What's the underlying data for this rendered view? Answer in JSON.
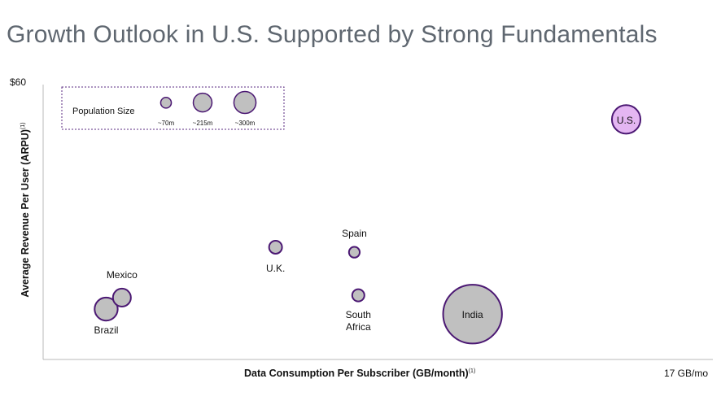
{
  "page": {
    "title": "Growth Outlook in U.S. Supported by Strong Fundamentals"
  },
  "colors": {
    "bubble_fill": "#c0c0c0",
    "bubble_stroke": "#4b1873",
    "us_fill": "#e4b6f2",
    "legend_border": "#5a2a80",
    "axis": "#b8b8b8",
    "title": "#5f6770"
  },
  "chart_data": {
    "type": "scatter",
    "title": "Growth Outlook in U.S. Supported by Strong Fundamentals",
    "xlabel": "Data Consumption Per Subscriber (GB/month)",
    "xlabel_footnote": "(1)",
    "ylabel": "Average Revenue Per User (ARPU)",
    "ylabel_footnote": "(1)",
    "x_max_label": "17 GB/mo",
    "y_max_label": "$60",
    "xlim": [
      0,
      17
    ],
    "ylim": [
      0,
      60
    ],
    "grid": false,
    "legend_position": "top-left",
    "legend": {
      "title": "Population Size",
      "items": [
        {
          "label": "~70m",
          "population": 70
        },
        {
          "label": "~215m",
          "population": 215
        },
        {
          "label": "~300m",
          "population": 300
        }
      ]
    },
    "points": [
      {
        "label": "Brazil",
        "x": 1.6,
        "y": 11.0,
        "population": 215,
        "highlight": false
      },
      {
        "label": "Mexico",
        "x": 2.0,
        "y": 13.5,
        "population": 130,
        "highlight": false
      },
      {
        "label": "U.K.",
        "x": 5.9,
        "y": 24.5,
        "population": 68,
        "highlight": false
      },
      {
        "label": "Spain",
        "x": 7.9,
        "y": 23.4,
        "population": 47,
        "highlight": false
      },
      {
        "label": "South Africa",
        "x": 8.0,
        "y": 14.0,
        "population": 60,
        "highlight": false
      },
      {
        "label": "India",
        "x": 10.9,
        "y": 9.9,
        "population": 1400,
        "highlight": false
      },
      {
        "label": "U.S.",
        "x": 14.8,
        "y": 52.4,
        "population": 330,
        "highlight": true
      }
    ]
  }
}
